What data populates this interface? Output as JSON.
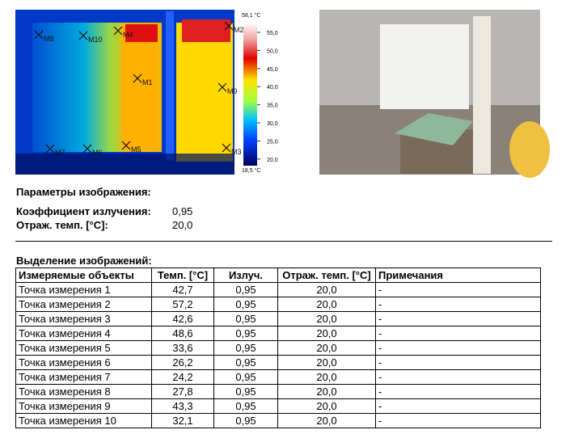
{
  "thermal_image": {
    "markers": [
      "M1",
      "M2",
      "M3",
      "M4",
      "M5",
      "M6",
      "M7",
      "M8",
      "M9",
      "M10"
    ],
    "scale": {
      "max": "58,1 °C",
      "ticks": [
        "55,0",
        "50,0",
        "45,0",
        "40,0",
        "35,0",
        "30,0",
        "25,0",
        "20,0"
      ],
      "min": "18,5 °C"
    }
  },
  "image_parameters": {
    "title": "Параметры изображения:",
    "rows": [
      [
        "Коэффициент излучения:",
        "0,95"
      ],
      [
        "Отраж. темп. [°C]:",
        "20,0"
      ]
    ]
  },
  "image_markers": {
    "title": "Выделение изображений:",
    "header": [
      "Измеряемые объекты",
      "Темп. [°C]",
      "Излуч.",
      "Отраж. темп. [°C]",
      "Примечания"
    ],
    "rows": [
      [
        "Точка измерения 1",
        "42,7",
        "0,95",
        "20,0",
        "-"
      ],
      [
        "Точка измерения 2",
        "57,2",
        "0,95",
        "20,0",
        "-"
      ],
      [
        "Точка измерения 3",
        "42,6",
        "0,95",
        "20,0",
        "-"
      ],
      [
        "Точка измерения 4",
        "48,6",
        "0,95",
        "20,0",
        "-"
      ],
      [
        "Точка измерения 5",
        "33,6",
        "0,95",
        "20,0",
        "-"
      ],
      [
        "Точка измерения 6",
        "26,2",
        "0,95",
        "20,0",
        "-"
      ],
      [
        "Точка измерения 7",
        "24,2",
        "0,95",
        "20,0",
        "-"
      ],
      [
        "Точка измерения 8",
        "27,8",
        "0,95",
        "20,0",
        "-"
      ],
      [
        "Точка измерения 9",
        "43,3",
        "0,95",
        "20,0",
        "-"
      ],
      [
        "Точка измерения 10",
        "32,1",
        "0,95",
        "20,0",
        "-"
      ]
    ]
  }
}
